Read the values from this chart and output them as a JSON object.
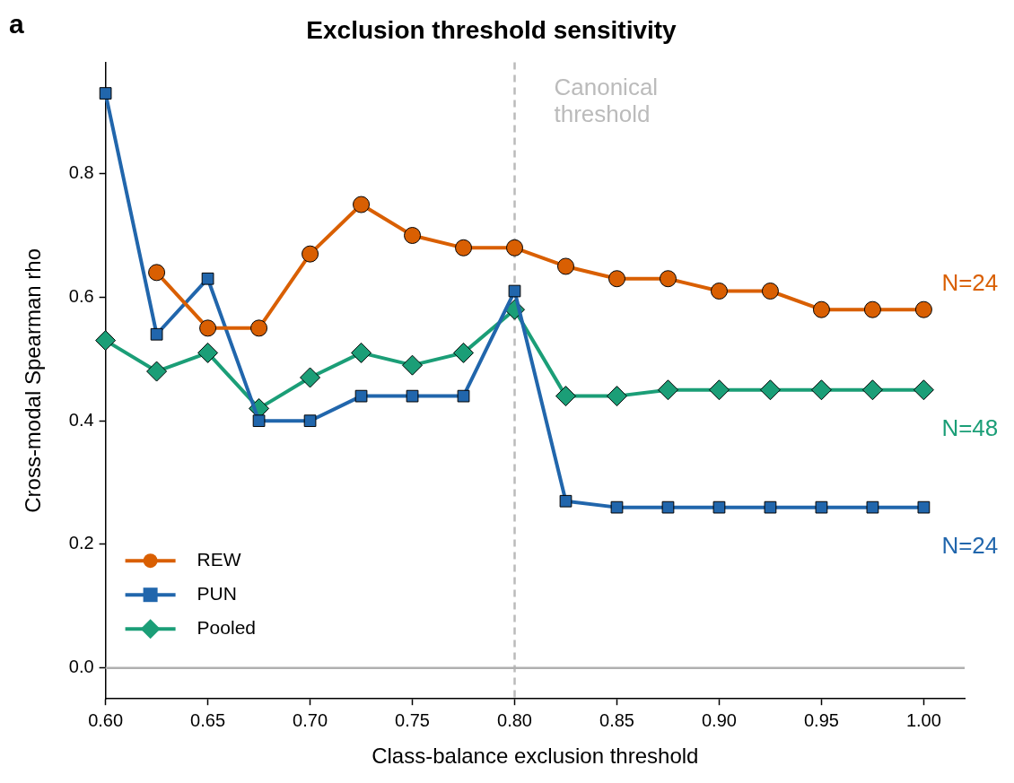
{
  "chart_data": {
    "type": "line",
    "title": "Exclusion threshold sensitivity",
    "xlabel": "Class-balance exclusion threshold",
    "ylabel": "Cross-modal Spearman rho",
    "x": [
      0.6,
      0.625,
      0.65,
      0.675,
      0.7,
      0.725,
      0.75,
      0.775,
      0.8,
      0.825,
      0.85,
      0.875,
      0.9,
      0.925,
      0.95,
      0.975,
      1.0
    ],
    "series": [
      {
        "name": "REW",
        "color": "#d95f02",
        "marker": "circle",
        "values": [
          null,
          0.64,
          0.55,
          0.55,
          0.67,
          0.75,
          0.7,
          0.68,
          0.68,
          0.65,
          0.63,
          0.63,
          0.61,
          0.61,
          0.58,
          0.58,
          0.58
        ]
      },
      {
        "name": "PUN",
        "color": "#2166ac",
        "marker": "square",
        "values": [
          0.93,
          0.54,
          0.63,
          0.4,
          0.4,
          0.44,
          0.44,
          0.44,
          0.61,
          0.27,
          0.26,
          0.26,
          0.26,
          0.26,
          0.26,
          0.26,
          0.26
        ]
      },
      {
        "name": "Pooled",
        "color": "#1b9e77",
        "marker": "diamond",
        "values": [
          0.53,
          0.48,
          0.51,
          0.42,
          0.47,
          0.51,
          0.49,
          0.51,
          0.58,
          0.44,
          0.44,
          0.45,
          0.45,
          0.45,
          0.45,
          0.45,
          0.45
        ]
      }
    ],
    "xlim": [
      0.6,
      1.02
    ],
    "ylim": [
      -0.05,
      0.98
    ],
    "xticks": [
      {
        "value": 0.6,
        "label": "0.60"
      },
      {
        "value": 0.65,
        "label": "0.65"
      },
      {
        "value": 0.7,
        "label": "0.70"
      },
      {
        "value": 0.75,
        "label": "0.75"
      },
      {
        "value": 0.8,
        "label": "0.80"
      },
      {
        "value": 0.85,
        "label": "0.85"
      },
      {
        "value": 0.9,
        "label": "0.90"
      },
      {
        "value": 0.95,
        "label": "0.95"
      },
      {
        "value": 1.0,
        "label": "1.00"
      }
    ],
    "yticks": [
      {
        "value": 0,
        "label": "0.0"
      },
      {
        "value": 0.2,
        "label": "0.2"
      },
      {
        "value": 0.4,
        "label": "0.4"
      },
      {
        "value": 0.6,
        "label": "0.6"
      },
      {
        "value": 0.8,
        "label": "0.8"
      }
    ],
    "ref_lines": [
      {
        "axis": "x",
        "value": 0.8,
        "label": "Canonical threshold",
        "color": "#bbbbbb",
        "line_style": "dashed"
      },
      {
        "axis": "y",
        "value": 0,
        "color": "#b0b0b0",
        "line_style": "solid"
      }
    ],
    "annotations": [
      "a",
      "N=24",
      "N=48",
      "N=24"
    ],
    "legend": "bottom left",
    "grid": false,
    "line_style": "solid"
  }
}
